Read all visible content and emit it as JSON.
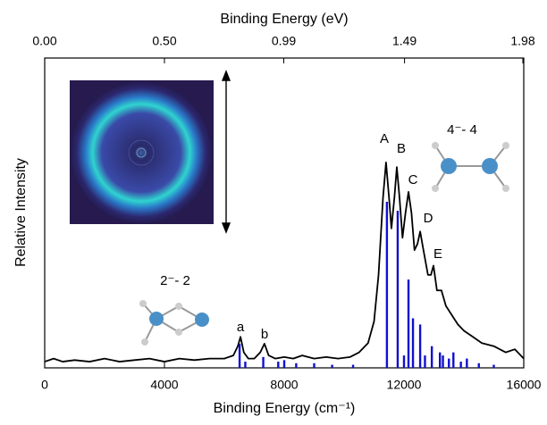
{
  "chart_data": {
    "type": "line",
    "xlabel": "Binding Energy (cm⁻¹)",
    "x2label": "Binding Energy (eV)",
    "ylabel": "Relative Intensity",
    "xlim": [
      0,
      16000
    ],
    "xticks": [
      0,
      4000,
      8000,
      12000,
      16000
    ],
    "x2lim": [
      0,
      1.9837
    ],
    "x2ticks": [
      {
        "value": 0,
        "label": "0.00"
      },
      {
        "value": 0.4959,
        "label": "0.50"
      },
      0.99,
      1.49,
      1.98
    ],
    "ylim": [
      0,
      1
    ],
    "series": [
      {
        "type": "line",
        "color": "#000000",
        "x": [
          0,
          300,
          600,
          1000,
          1500,
          2000,
          2500,
          3000,
          3500,
          4000,
          4500,
          5000,
          5500,
          6000,
          6300,
          6450,
          6540,
          6650,
          6800,
          7000,
          7200,
          7340,
          7480,
          7700,
          8000,
          8300,
          8600,
          9000,
          9400,
          9800,
          10200,
          10500,
          10800,
          11000,
          11150,
          11300,
          11400,
          11500,
          11580,
          11680,
          11760,
          11850,
          11950,
          12050,
          12150,
          12250,
          12350,
          12450,
          12540,
          12650,
          12800,
          12900,
          12985,
          13100,
          13250,
          13400,
          13600,
          13800,
          14000,
          14300,
          14600,
          15000,
          15400,
          15700,
          16000
        ],
        "values": [
          0.02,
          0.03,
          0.02,
          0.025,
          0.02,
          0.03,
          0.02,
          0.025,
          0.03,
          0.02,
          0.03,
          0.025,
          0.03,
          0.03,
          0.04,
          0.07,
          0.1,
          0.05,
          0.03,
          0.03,
          0.05,
          0.078,
          0.04,
          0.03,
          0.035,
          0.03,
          0.04,
          0.03,
          0.035,
          0.03,
          0.035,
          0.05,
          0.08,
          0.15,
          0.3,
          0.55,
          0.663,
          0.55,
          0.45,
          0.55,
          0.648,
          0.55,
          0.42,
          0.5,
          0.568,
          0.5,
          0.38,
          0.4,
          0.44,
          0.38,
          0.3,
          0.3,
          0.33,
          0.25,
          0.25,
          0.2,
          0.17,
          0.14,
          0.12,
          0.1,
          0.08,
          0.07,
          0.05,
          0.06,
          0.03
        ]
      },
      {
        "type": "stick",
        "color": "#1010d0",
        "x": [
          6510,
          6700,
          7300,
          7800,
          8000,
          8400,
          9000,
          9600,
          10300,
          11430,
          11790,
          12000,
          12150,
          12300,
          12540,
          12700,
          12930,
          13200,
          13300,
          13500,
          13650,
          13900,
          14100,
          14500,
          15000
        ],
        "values": [
          0.078,
          0.02,
          0.035,
          0.02,
          0.025,
          0.015,
          0.015,
          0.01,
          0.01,
          0.536,
          0.507,
          0.04,
          0.285,
          0.16,
          0.14,
          0.04,
          0.07,
          0.05,
          0.04,
          0.03,
          0.05,
          0.02,
          0.03,
          0.015,
          0.01
        ]
      }
    ],
    "annotations": [
      {
        "text": "a",
        "color": "#000000"
      },
      {
        "text": "b",
        "color": "#000000"
      },
      {
        "text": "A",
        "color": "#000000"
      },
      {
        "text": "B",
        "color": "#000000"
      },
      {
        "text": "C",
        "color": "#000000"
      },
      {
        "text": "D",
        "color": "#000000"
      },
      {
        "text": "E",
        "color": "#000000"
      },
      {
        "text": "2⁻- 2",
        "color": "#1a1ae0"
      },
      {
        "text": "4⁻- 4",
        "color": "#1a1ae0"
      }
    ]
  }
}
